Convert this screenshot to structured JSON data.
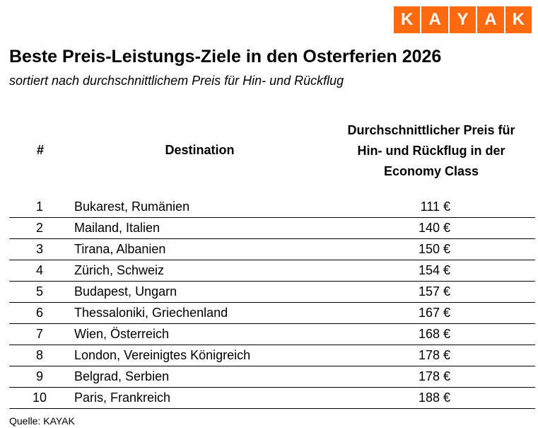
{
  "brand": {
    "letters": [
      "K",
      "A",
      "Y",
      "A",
      "K"
    ],
    "color": "#ff690f"
  },
  "title": "Beste Preis-Leistungs-Ziele in den Osterferien 2026",
  "subtitle": "sortiert nach durchschnittlichem Preis für Hin- und Rückflug",
  "headers": {
    "rank": "#",
    "destination": "Destination",
    "price_lines": [
      "Durchschnittlicher Preis für",
      "Hin- und Rückflug in der",
      "Economy Class"
    ]
  },
  "source": "Quelle: KAYAK",
  "chart_data": {
    "type": "table",
    "columns": [
      "#",
      "Destination",
      "Durchschnittlicher Preis für Hin- und Rückflug in der Economy Class"
    ],
    "rows": [
      {
        "rank": "1",
        "destination": "Bukarest, Rumänien",
        "price": "111 €"
      },
      {
        "rank": "2",
        "destination": "Mailand, Italien",
        "price": "140 €"
      },
      {
        "rank": "3",
        "destination": "Tirana, Albanien",
        "price": "150 €"
      },
      {
        "rank": "4",
        "destination": "Zürich, Schweiz",
        "price": "154 €"
      },
      {
        "rank": "5",
        "destination": "Budapest, Ungarn",
        "price": "157 €"
      },
      {
        "rank": "6",
        "destination": "Thessaloniki, Griechenland",
        "price": "167 €"
      },
      {
        "rank": "7",
        "destination": "Wien, Österreich",
        "price": "168 €"
      },
      {
        "rank": "8",
        "destination": "London, Vereinigtes Königreich",
        "price": "178 €"
      },
      {
        "rank": "9",
        "destination": "Belgrad, Serbien",
        "price": "178 €"
      },
      {
        "rank": "10",
        "destination": "Paris, Frankreich",
        "price": "188 €"
      }
    ]
  }
}
